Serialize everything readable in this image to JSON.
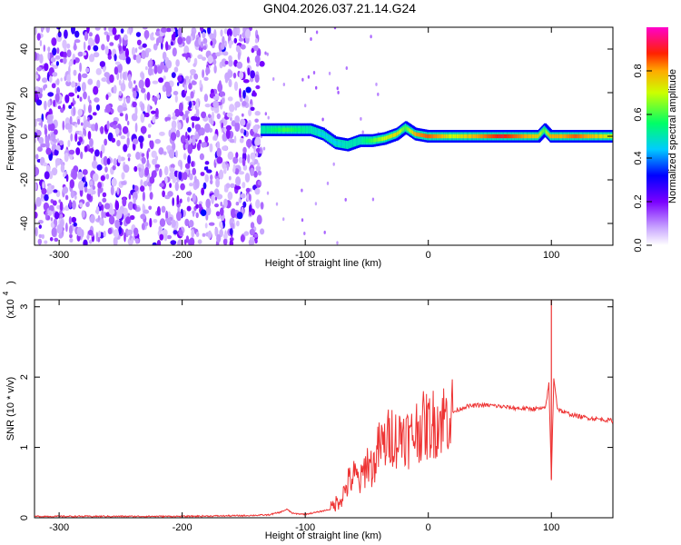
{
  "title": "GN04.2026.037.21.14.G24",
  "chart_data": [
    {
      "type": "heatmap",
      "xlabel": "Height of straight line (km)",
      "ylabel": "Frequency (Hz)",
      "xlim": [
        -320,
        150
      ],
      "ylim": [
        -50,
        50
      ],
      "xticks": [
        -300,
        -200,
        -100,
        0,
        100
      ],
      "yticks": [
        -40,
        -20,
        0,
        20,
        40
      ],
      "colorbar": {
        "label": "Normalized spectral amplitude",
        "range": [
          0,
          1
        ],
        "ticks": [
          "0.0",
          "0.2",
          "0.4",
          "0.6",
          "0.8"
        ],
        "colors": [
          "#ffffff",
          "#8800ff",
          "#0000ff",
          "#00ffff",
          "#00ff00",
          "#ffff00",
          "#ff0000",
          "#ff00ff"
        ]
      },
      "noise_region_x": [
        -320,
        -135
      ],
      "ridge": {
        "x": [
          -135,
          -125,
          -115,
          -105,
          -95,
          -85,
          -75,
          -65,
          -55,
          -45,
          -35,
          -25,
          -18,
          -10,
          0,
          10,
          20,
          30,
          40,
          50,
          60,
          70,
          80,
          90,
          95,
          100,
          110,
          120,
          130,
          140,
          150
        ],
        "freq": [
          3,
          3,
          3,
          3,
          3,
          1,
          -3,
          -4,
          -2,
          -2,
          -1,
          1,
          4,
          1,
          0,
          0,
          0,
          0,
          0,
          0,
          0,
          0,
          0,
          0,
          3,
          0,
          0,
          0,
          0,
          0,
          0
        ],
        "amp": [
          0.5,
          0.55,
          0.6,
          0.55,
          0.5,
          0.45,
          0.45,
          0.5,
          0.5,
          0.6,
          0.7,
          0.75,
          0.6,
          0.8,
          0.85,
          0.8,
          0.7,
          0.75,
          0.8,
          0.85,
          0.9,
          0.85,
          0.8,
          0.75,
          0.6,
          0.8,
          0.8,
          0.85,
          0.8,
          0.75,
          0.7
        ]
      }
    },
    {
      "type": "line",
      "xlabel": "Height of straight line (km)",
      "ylabel": "SNR (10 * v/v)",
      "yscale_label": "(x10",
      "yscale_exp": "4",
      "xlim": [
        -320,
        150
      ],
      "ylim": [
        0,
        3.1
      ],
      "xticks": [
        -300,
        -200,
        -100,
        0,
        100
      ],
      "yticks": [
        0,
        1,
        2,
        3
      ],
      "series": [
        {
          "color": "#ee3333",
          "x": [
            -320,
            -250,
            -200,
            -150,
            -130,
            -120,
            -115,
            -110,
            -100,
            -90,
            -80,
            -70,
            -65,
            -60,
            -55,
            -50,
            -45,
            -40,
            -35,
            -30,
            -25,
            -20,
            -15,
            -10,
            -5,
            0,
            10,
            20,
            30,
            40,
            50,
            60,
            70,
            80,
            90,
            95,
            98,
            100,
            102,
            105,
            110,
            120,
            130,
            140,
            150
          ],
          "y": [
            0.02,
            0.02,
            0.02,
            0.03,
            0.04,
            0.08,
            0.12,
            0.06,
            0.05,
            0.08,
            0.12,
            0.3,
            0.5,
            0.6,
            0.5,
            0.8,
            0.7,
            1.0,
            1.05,
            1.2,
            1.1,
            1.25,
            1.1,
            1.25,
            1.3,
            1.3,
            1.4,
            1.5,
            1.58,
            1.6,
            1.6,
            1.58,
            1.56,
            1.55,
            1.55,
            1.55,
            1.9,
            0.55,
            2.0,
            1.55,
            1.5,
            1.45,
            1.42,
            1.4,
            1.38
          ]
        }
      ]
    }
  ]
}
